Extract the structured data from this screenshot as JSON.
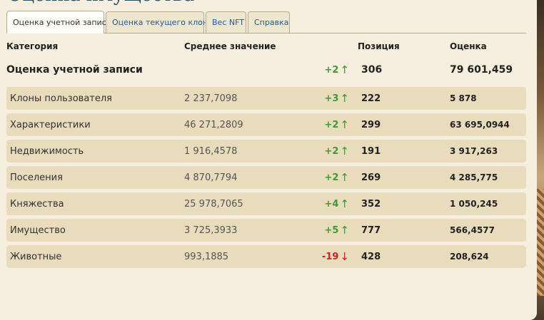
{
  "page": {
    "title": "Оценка имущества"
  },
  "tabs": [
    {
      "label": "Оценка учетной записи",
      "active": true
    },
    {
      "label": "Оценка текущего клона",
      "active": false
    },
    {
      "label": "Вес NFT",
      "active": false
    },
    {
      "label": "Справка",
      "active": false
    }
  ],
  "table": {
    "headers": {
      "category": "Категория",
      "average": "Среднее значение",
      "position": "Позиция",
      "score": "Оценка"
    },
    "total": {
      "category": "Оценка учетной записи",
      "change": "+2",
      "direction": "up",
      "position": "306",
      "score": "79 601,459"
    },
    "rows": [
      {
        "category": "Клоны пользователя",
        "average": "2 237,7098",
        "change": "+3",
        "direction": "up",
        "position": "222",
        "score": "5 878"
      },
      {
        "category": "Характеристики",
        "average": "46 271,2809",
        "change": "+2",
        "direction": "up",
        "position": "299",
        "score": "63 695,0944"
      },
      {
        "category": "Недвижимость",
        "average": "1 916,4578",
        "change": "+2",
        "direction": "up",
        "position": "191",
        "score": "3 917,263"
      },
      {
        "category": "Поселения",
        "average": "4 870,7794",
        "change": "+2",
        "direction": "up",
        "position": "269",
        "score": "4 285,775"
      },
      {
        "category": "Княжества",
        "average": "25 978,7065",
        "change": "+4",
        "direction": "up",
        "position": "352",
        "score": "1 050,245"
      },
      {
        "category": "Имущество",
        "average": "3 725,3933",
        "change": "+5",
        "direction": "up",
        "position": "777",
        "score": "566,4577"
      },
      {
        "category": "Животные",
        "average": "993,1885",
        "change": "-19",
        "direction": "down",
        "position": "428",
        "score": "208,624"
      }
    ]
  },
  "icons": {
    "up": "arrow-up-icon",
    "down": "arrow-down-icon"
  },
  "colors": {
    "up": "#3e9a35",
    "down": "#d21e1e",
    "row_bg": "#e8dcbc",
    "link": "#1f5e93"
  }
}
